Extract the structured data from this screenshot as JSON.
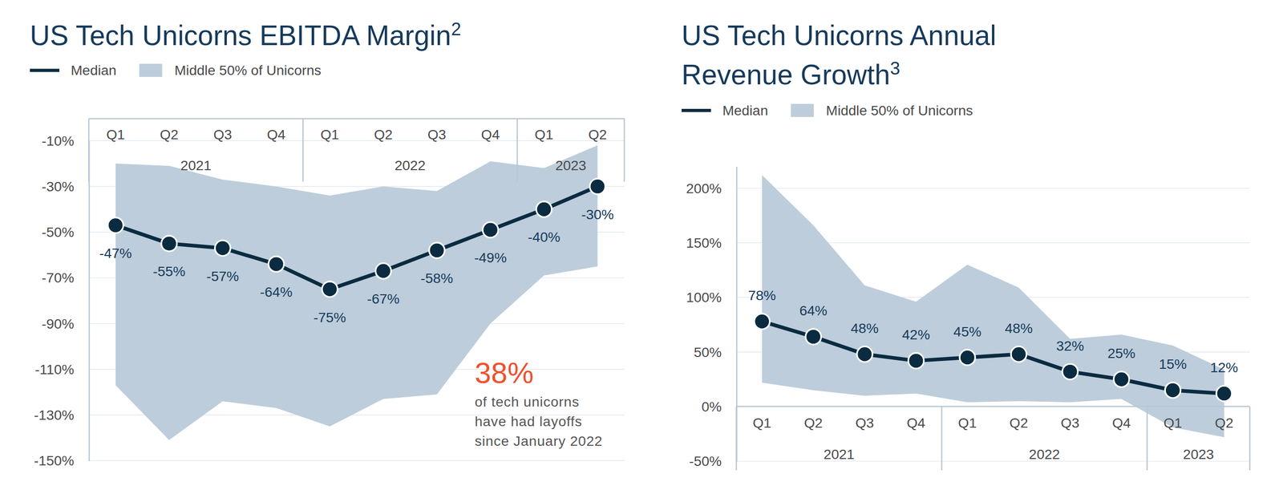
{
  "chart_data": [
    {
      "type": "line",
      "title": "US Tech Unicorns EBITDA Margin",
      "title_note": "2",
      "categories": [
        "Q1",
        "Q2",
        "Q3",
        "Q4",
        "Q1",
        "Q2",
        "Q3",
        "Q4",
        "Q1",
        "Q2"
      ],
      "groups": [
        {
          "label": "2021",
          "size": 4
        },
        {
          "label": "2022",
          "size": 4
        },
        {
          "label": "2023",
          "size": 2
        }
      ],
      "ylim": [
        -150,
        -10
      ],
      "yticks": [
        {
          "value": -10,
          "label": "-10%"
        },
        {
          "value": -30,
          "label": "-30%"
        },
        {
          "value": -50,
          "label": "-50%"
        },
        {
          "value": -70,
          "label": "-70%"
        },
        {
          "value": -90,
          "label": "-90%"
        },
        {
          "value": -110,
          "label": "-110%"
        },
        {
          "value": -130,
          "label": "-130%"
        },
        {
          "value": -150,
          "label": "-150%"
        }
      ],
      "grid": true,
      "legend": "top-left",
      "series": [
        {
          "name": "Median",
          "type": "line",
          "color": "#0a2b40",
          "marker": "circle",
          "data_labels": true,
          "values": [
            -47,
            -55,
            -57,
            -64,
            -75,
            -67,
            -58,
            -49,
            -40,
            -30
          ],
          "value_labels": [
            "-47%",
            "-55%",
            "-57%",
            "-64%",
            "-75%",
            "-67%",
            "-58%",
            "-49%",
            "-40%",
            "-30%"
          ]
        },
        {
          "name": "Middle 50% of Unicorns",
          "type": "area",
          "color": "#bdcddb",
          "lower": [
            -117,
            -141,
            -124,
            -127,
            -135,
            -123,
            -121,
            -90,
            -69,
            -65
          ],
          "upper": [
            -20,
            -21,
            -27,
            -30,
            -34,
            -30,
            -32,
            -19,
            -22,
            -12
          ]
        }
      ],
      "annotation": {
        "highlight": "38%",
        "lines": [
          "of tech unicorns",
          "have had layoffs",
          "since January 2022"
        ]
      }
    },
    {
      "type": "line",
      "title": [
        "US Tech Unicorns Annual",
        "Revenue Growth"
      ],
      "title_note": "3",
      "categories": [
        "Q1",
        "Q2",
        "Q3",
        "Q4",
        "Q1",
        "Q2",
        "Q3",
        "Q4",
        "Q1",
        "Q2"
      ],
      "groups": [
        {
          "label": "2021",
          "size": 4
        },
        {
          "label": "2022",
          "size": 4
        },
        {
          "label": "2023",
          "size": 2
        }
      ],
      "ylim": [
        -50,
        220
      ],
      "yticks": [
        {
          "value": -50,
          "label": "-50%"
        },
        {
          "value": 0,
          "label": "0%"
        },
        {
          "value": 50,
          "label": "50%"
        },
        {
          "value": 100,
          "label": "100%"
        },
        {
          "value": 150,
          "label": "150%"
        },
        {
          "value": 200,
          "label": "200%"
        }
      ],
      "grid": true,
      "legend": "top-left",
      "series": [
        {
          "name": "Median",
          "type": "line",
          "color": "#0a2b40",
          "marker": "circle",
          "data_labels": true,
          "values": [
            78,
            64,
            48,
            42,
            45,
            48,
            32,
            25,
            15,
            12
          ],
          "value_labels": [
            "78%",
            "64%",
            "48%",
            "42%",
            "45%",
            "48%",
            "32%",
            "25%",
            "15%",
            "12%"
          ]
        },
        {
          "name": "Middle 50% of Unicorns",
          "type": "area",
          "color": "#bdcddb",
          "lower": [
            22,
            15,
            10,
            12,
            4,
            5,
            4,
            7,
            -19,
            -28
          ],
          "upper": [
            212,
            166,
            111,
            96,
            130,
            109,
            62,
            66,
            56,
            34
          ]
        }
      ]
    }
  ]
}
